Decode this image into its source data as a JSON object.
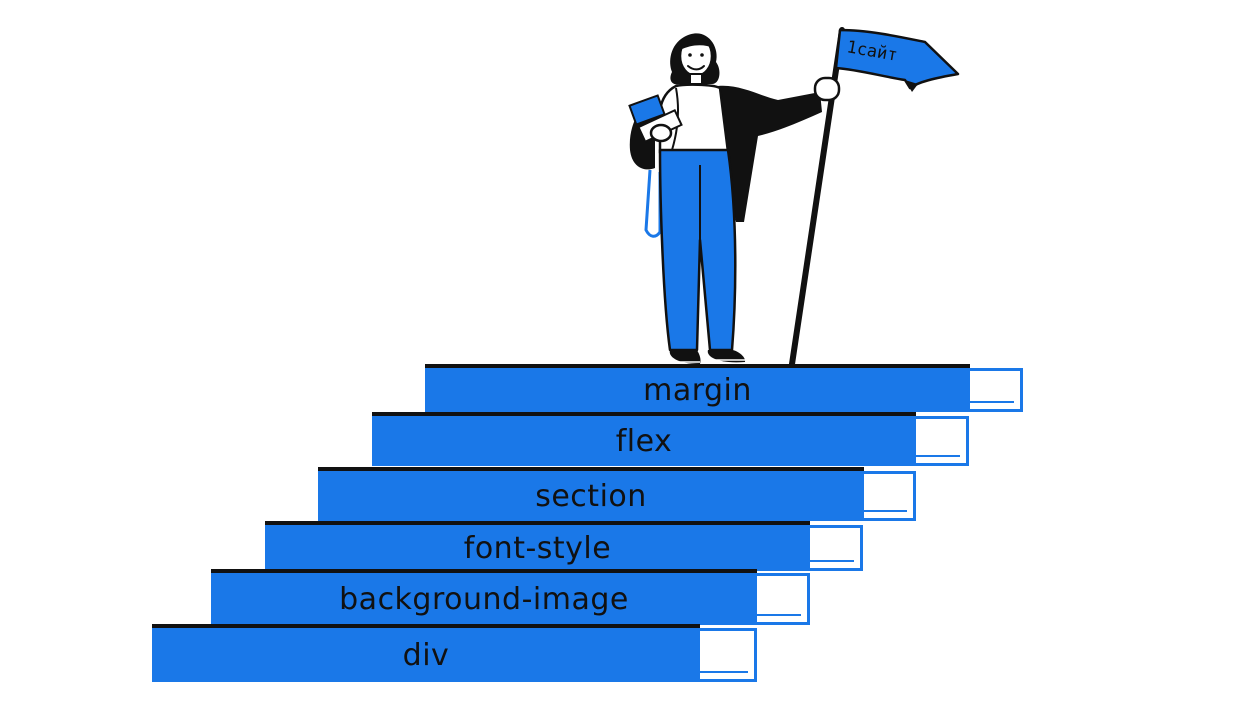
{
  "steps": [
    {
      "label": "div"
    },
    {
      "label": "background-image"
    },
    {
      "label": "font-style"
    },
    {
      "label": "section"
    },
    {
      "label": "flex"
    },
    {
      "label": "margin"
    }
  ],
  "flag": {
    "text": "1сайт"
  },
  "colors": {
    "accent": "#1a78e8",
    "ink": "#111111",
    "paper": "#ffffff"
  }
}
